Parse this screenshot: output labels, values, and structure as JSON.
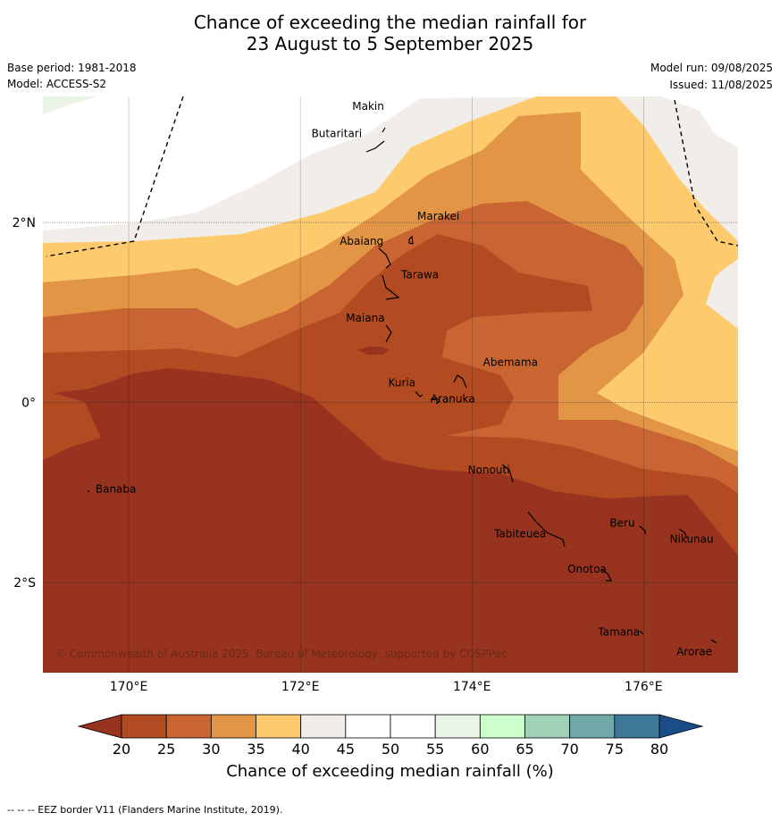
{
  "header": {
    "title_line1": "Chance of exceeding the median rainfall for",
    "title_line2": "23 August to 5 September 2025",
    "base_period": "Base period: 1981-2018",
    "model": "Model: ACCESS-S2",
    "model_run": "Model run: 09/08/2025",
    "issued": "Issued: 11/08/2025"
  },
  "map": {
    "lon_range": [
      169,
      177.1
    ],
    "lat_range": [
      -3.0,
      3.4
    ],
    "lon_ticks": [
      {
        "value": 170,
        "label": "170°E"
      },
      {
        "value": 172,
        "label": "172°E"
      },
      {
        "value": 174,
        "label": "174°E"
      },
      {
        "value": 176,
        "label": "176°E"
      }
    ],
    "lat_ticks": [
      {
        "value": 2,
        "label": "2°N"
      },
      {
        "value": 0,
        "label": "0°"
      },
      {
        "value": -2,
        "label": "2°S"
      }
    ],
    "copyright": "© Commonwealth of Australia 2025, Bureau of Meteorology, supported by COSPPac",
    "islands": [
      {
        "name": "Makin",
        "lon": 172.98,
        "lat": 3.25
      },
      {
        "name": "Butaritari",
        "lon": 172.9,
        "lat": 3.07
      },
      {
        "name": "Marakei",
        "lon": 173.3,
        "lat": 2.0
      },
      {
        "name": "Abaiang",
        "lon": 173.0,
        "lat": 1.83
      },
      {
        "name": "Tarawa",
        "lon": 173.05,
        "lat": 1.45
      },
      {
        "name": "Maiana",
        "lon": 173.0,
        "lat": 0.92
      },
      {
        "name": "Abemama",
        "lon": 173.9,
        "lat": 0.4
      },
      {
        "name": "Kuria",
        "lon": 173.4,
        "lat": 0.23
      },
      {
        "name": "Aranuka",
        "lon": 173.6,
        "lat": 0.16
      },
      {
        "name": "Banaba",
        "lon": 169.54,
        "lat": -0.87
      },
      {
        "name": "Nonouti",
        "lon": 174.4,
        "lat": -0.65
      },
      {
        "name": "Tabiteuea",
        "lon": 174.8,
        "lat": -1.3
      },
      {
        "name": "Beru",
        "lon": 175.98,
        "lat": -1.33
      },
      {
        "name": "Nikunau",
        "lon": 176.45,
        "lat": -1.35
      },
      {
        "name": "Onotoa",
        "lon": 175.55,
        "lat": -1.8
      },
      {
        "name": "Tamana",
        "lon": 175.98,
        "lat": -2.5
      },
      {
        "name": "Arorae",
        "lon": 176.82,
        "lat": -2.64
      }
    ]
  },
  "colorbar": {
    "label": "Chance of exceeding median rainfall (%)",
    "ticks": [
      "20",
      "25",
      "30",
      "35",
      "40",
      "45",
      "50",
      "55",
      "60",
      "65",
      "70",
      "75",
      "80"
    ],
    "colors": [
      "#b24a22",
      "#c96532",
      "#e19545",
      "#fdcb6e",
      "#f1ede8",
      "#ffffff",
      "#ffffff",
      "#eaf5e8",
      "#ccffcc",
      "#9ed1b8",
      "#71a8a8",
      "#3e7899"
    ],
    "under_color": "#97331f",
    "over_color": "#1a4d88"
  },
  "footer": "--  --  -- EEZ border V11 (Flanders Marine Institute, 2019)."
}
